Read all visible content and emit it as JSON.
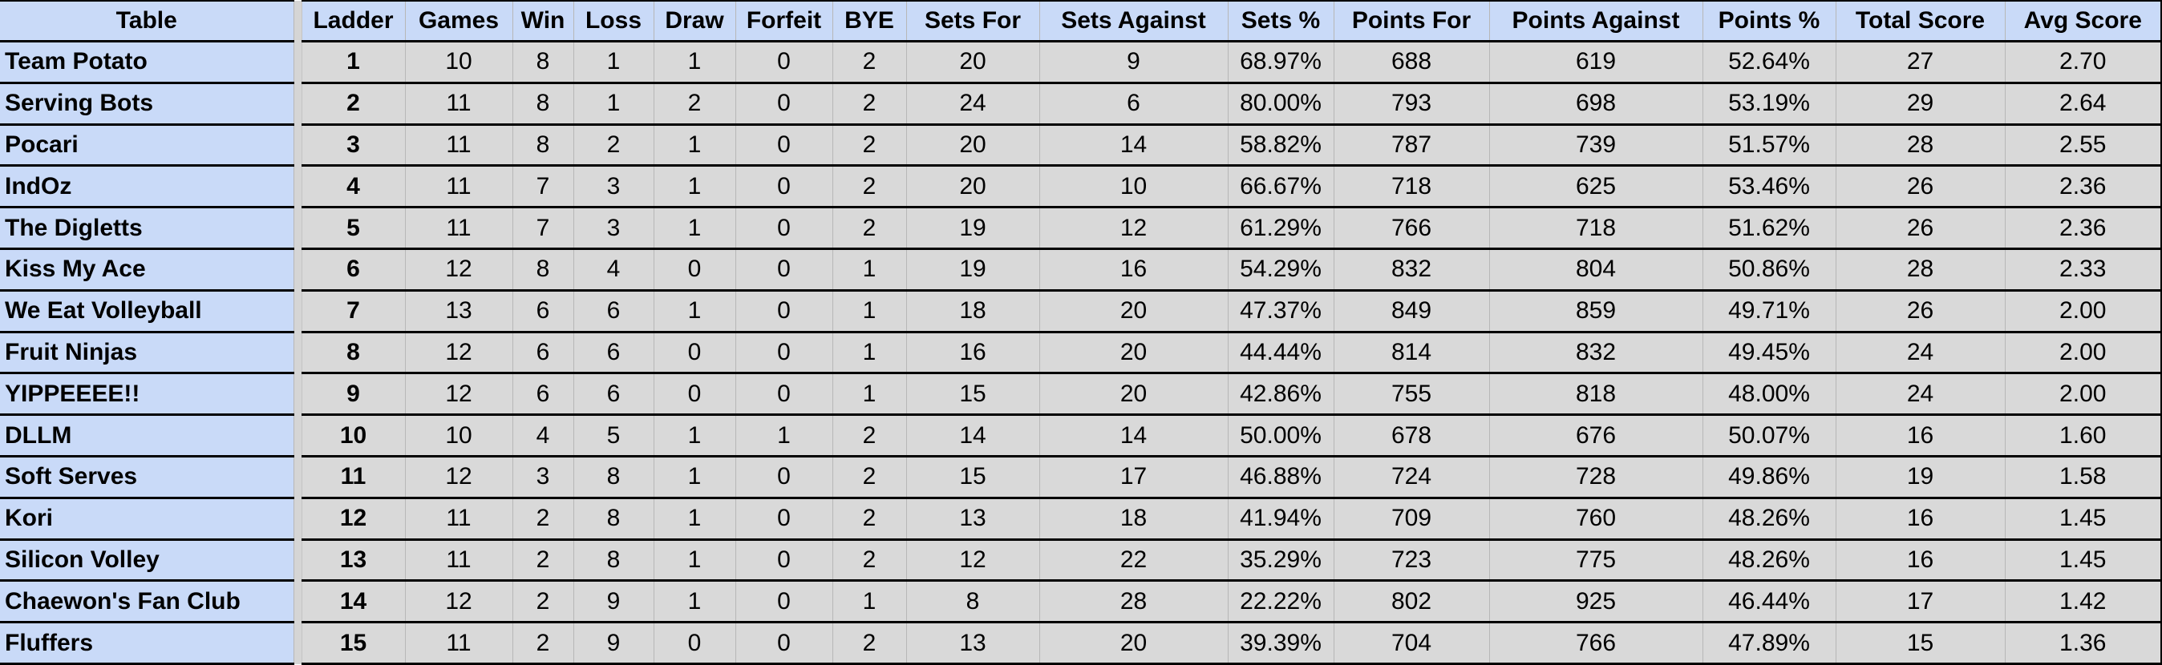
{
  "table": {
    "columns": [
      "Table",
      "Ladder",
      "Games",
      "Win",
      "Loss",
      "Draw",
      "Forfeit",
      "BYE",
      "Sets For",
      "Sets Against",
      "Sets %",
      "Points For",
      "Points Against",
      "Points %",
      "Total Score",
      "Avg Score"
    ],
    "rows": [
      {
        "team": "Team Potato",
        "ladder": 1,
        "games": 10,
        "win": 8,
        "loss": 1,
        "draw": 1,
        "forfeit": 0,
        "bye": 2,
        "sets_for": 20,
        "sets_against": 9,
        "sets_pct": "68.97%",
        "points_for": 688,
        "points_against": 619,
        "points_pct": "52.64%",
        "total_score": 27,
        "avg_score": "2.70"
      },
      {
        "team": "Serving Bots",
        "ladder": 2,
        "games": 11,
        "win": 8,
        "loss": 1,
        "draw": 2,
        "forfeit": 0,
        "bye": 2,
        "sets_for": 24,
        "sets_against": 6,
        "sets_pct": "80.00%",
        "points_for": 793,
        "points_against": 698,
        "points_pct": "53.19%",
        "total_score": 29,
        "avg_score": "2.64"
      },
      {
        "team": "Pocari",
        "ladder": 3,
        "games": 11,
        "win": 8,
        "loss": 2,
        "draw": 1,
        "forfeit": 0,
        "bye": 2,
        "sets_for": 20,
        "sets_against": 14,
        "sets_pct": "58.82%",
        "points_for": 787,
        "points_against": 739,
        "points_pct": "51.57%",
        "total_score": 28,
        "avg_score": "2.55"
      },
      {
        "team": "IndOz",
        "ladder": 4,
        "games": 11,
        "win": 7,
        "loss": 3,
        "draw": 1,
        "forfeit": 0,
        "bye": 2,
        "sets_for": 20,
        "sets_against": 10,
        "sets_pct": "66.67%",
        "points_for": 718,
        "points_against": 625,
        "points_pct": "53.46%",
        "total_score": 26,
        "avg_score": "2.36"
      },
      {
        "team": "The Digletts",
        "ladder": 5,
        "games": 11,
        "win": 7,
        "loss": 3,
        "draw": 1,
        "forfeit": 0,
        "bye": 2,
        "sets_for": 19,
        "sets_against": 12,
        "sets_pct": "61.29%",
        "points_for": 766,
        "points_against": 718,
        "points_pct": "51.62%",
        "total_score": 26,
        "avg_score": "2.36"
      },
      {
        "team": "Kiss My Ace",
        "ladder": 6,
        "games": 12,
        "win": 8,
        "loss": 4,
        "draw": 0,
        "forfeit": 0,
        "bye": 1,
        "sets_for": 19,
        "sets_against": 16,
        "sets_pct": "54.29%",
        "points_for": 832,
        "points_against": 804,
        "points_pct": "50.86%",
        "total_score": 28,
        "avg_score": "2.33"
      },
      {
        "team": "We Eat Volleyball",
        "ladder": 7,
        "games": 13,
        "win": 6,
        "loss": 6,
        "draw": 1,
        "forfeit": 0,
        "bye": 1,
        "sets_for": 18,
        "sets_against": 20,
        "sets_pct": "47.37%",
        "points_for": 849,
        "points_against": 859,
        "points_pct": "49.71%",
        "total_score": 26,
        "avg_score": "2.00"
      },
      {
        "team": "Fruit Ninjas",
        "ladder": 8,
        "games": 12,
        "win": 6,
        "loss": 6,
        "draw": 0,
        "forfeit": 0,
        "bye": 1,
        "sets_for": 16,
        "sets_against": 20,
        "sets_pct": "44.44%",
        "points_for": 814,
        "points_against": 832,
        "points_pct": "49.45%",
        "total_score": 24,
        "avg_score": "2.00"
      },
      {
        "team": "YIPPEEEE!!",
        "ladder": 9,
        "games": 12,
        "win": 6,
        "loss": 6,
        "draw": 0,
        "forfeit": 0,
        "bye": 1,
        "sets_for": 15,
        "sets_against": 20,
        "sets_pct": "42.86%",
        "points_for": 755,
        "points_against": 818,
        "points_pct": "48.00%",
        "total_score": 24,
        "avg_score": "2.00"
      },
      {
        "team": "DLLM",
        "ladder": 10,
        "games": 10,
        "win": 4,
        "loss": 5,
        "draw": 1,
        "forfeit": 1,
        "bye": 2,
        "sets_for": 14,
        "sets_against": 14,
        "sets_pct": "50.00%",
        "points_for": 678,
        "points_against": 676,
        "points_pct": "50.07%",
        "total_score": 16,
        "avg_score": "1.60"
      },
      {
        "team": "Soft Serves",
        "ladder": 11,
        "games": 12,
        "win": 3,
        "loss": 8,
        "draw": 1,
        "forfeit": 0,
        "bye": 2,
        "sets_for": 15,
        "sets_against": 17,
        "sets_pct": "46.88%",
        "points_for": 724,
        "points_against": 728,
        "points_pct": "49.86%",
        "total_score": 19,
        "avg_score": "1.58"
      },
      {
        "team": "Kori",
        "ladder": 12,
        "games": 11,
        "win": 2,
        "loss": 8,
        "draw": 1,
        "forfeit": 0,
        "bye": 2,
        "sets_for": 13,
        "sets_against": 18,
        "sets_pct": "41.94%",
        "points_for": 709,
        "points_against": 760,
        "points_pct": "48.26%",
        "total_score": 16,
        "avg_score": "1.45"
      },
      {
        "team": "Silicon Volley",
        "ladder": 13,
        "games": 11,
        "win": 2,
        "loss": 8,
        "draw": 1,
        "forfeit": 0,
        "bye": 2,
        "sets_for": 12,
        "sets_against": 22,
        "sets_pct": "35.29%",
        "points_for": 723,
        "points_against": 775,
        "points_pct": "48.26%",
        "total_score": 16,
        "avg_score": "1.45"
      },
      {
        "team": "Chaewon's Fan Club",
        "ladder": 14,
        "games": 12,
        "win": 2,
        "loss": 9,
        "draw": 1,
        "forfeit": 0,
        "bye": 1,
        "sets_for": 8,
        "sets_against": 28,
        "sets_pct": "22.22%",
        "points_for": 802,
        "points_against": 925,
        "points_pct": "46.44%",
        "total_score": 17,
        "avg_score": "1.42"
      },
      {
        "team": "Fluffers",
        "ladder": 15,
        "games": 11,
        "win": 2,
        "loss": 9,
        "draw": 0,
        "forfeit": 0,
        "bye": 2,
        "sets_for": 13,
        "sets_against": 20,
        "sets_pct": "39.39%",
        "points_for": 704,
        "points_against": 766,
        "points_pct": "47.89%",
        "total_score": 15,
        "avg_score": "1.36"
      }
    ]
  },
  "colors": {
    "header_bg": "#c9daf8",
    "team_col_bg": "#c9daf8",
    "cell_bg": "#d9d9d9",
    "separator_bg": "#d5d5d5",
    "row_border": "#000000",
    "gridline": "#b7b7b7"
  }
}
